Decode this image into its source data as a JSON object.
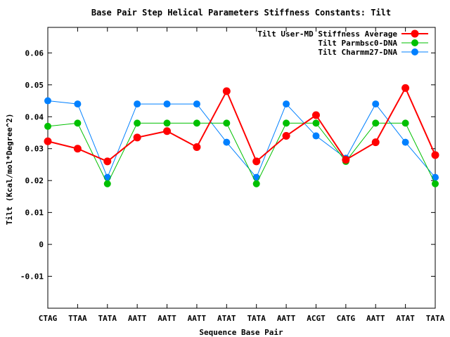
{
  "chart_data": {
    "type": "line",
    "title": "Base Pair Step Helical Parameters Stiffness Constants: Tilt",
    "xlabel": "Sequence Base Pair",
    "ylabel": "Tilt (Kcal/mol*Degree^2)",
    "ylim": [
      -0.02,
      0.068
    ],
    "yticks": [
      "-0.01",
      "0",
      "0.01",
      "0.02",
      "0.03",
      "0.04",
      "0.05",
      "0.06"
    ],
    "ytick_values": [
      -0.01,
      0,
      0.01,
      0.02,
      0.03,
      0.04,
      0.05,
      0.06
    ],
    "categories": [
      "CTAG",
      "TTAA",
      "TATA",
      "AATT",
      "AATT",
      "AATT",
      "ATAT",
      "TATA",
      "AATT",
      "ACGT",
      "CATG",
      "AATT",
      "ATAT",
      "TATA"
    ],
    "grid": false,
    "legend_position": "top-right",
    "series": [
      {
        "name": "Tilt User-MD Stiffness Average",
        "color": "#ff0000",
        "values": [
          0.0323,
          0.03,
          0.026,
          0.0335,
          0.0355,
          0.0305,
          0.048,
          0.026,
          0.034,
          0.0405,
          0.0265,
          0.032,
          0.049,
          0.028
        ]
      },
      {
        "name": "Tilt Parmbsc0-DNA",
        "color": "#00c000",
        "values": [
          0.037,
          0.038,
          0.019,
          0.038,
          0.038,
          0.038,
          0.038,
          0.019,
          0.038,
          0.038,
          0.026,
          0.038,
          0.038,
          0.019
        ]
      },
      {
        "name": "Tilt Charmm27-DNA",
        "color": "#0080ff",
        "values": [
          0.045,
          0.044,
          0.021,
          0.044,
          0.044,
          0.044,
          0.032,
          0.021,
          0.044,
          0.034,
          0.027,
          0.044,
          0.032,
          0.021
        ]
      }
    ]
  }
}
